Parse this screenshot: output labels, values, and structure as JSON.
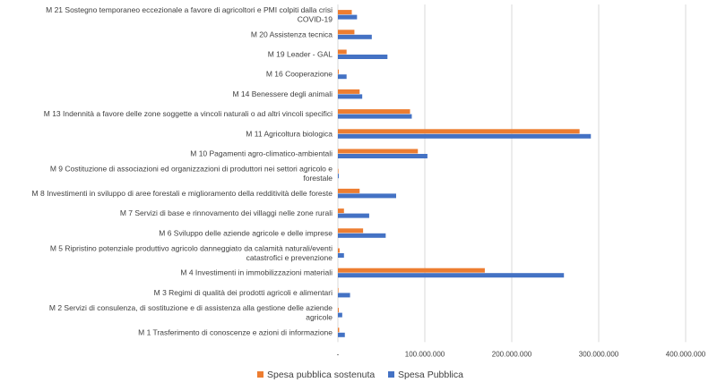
{
  "chart_data": {
    "type": "bar",
    "orientation": "horizontal",
    "title": "",
    "xlabel": "",
    "ylabel": "",
    "xlim": [
      0,
      400000000
    ],
    "x_ticks": [
      0,
      100000000,
      200000000,
      300000000,
      400000000
    ],
    "x_tick_labels": [
      "-",
      "100.000.000",
      "200.000.000",
      "300.000.000",
      "400.000.000"
    ],
    "grid": true,
    "legend_position": "bottom",
    "categories": [
      [
        "M 21 Sostegno temporaneo eccezionale a favore di agricoltori e PMI colpiti dalla crisi",
        "COVID-19"
      ],
      [
        "M 20 Assistenza tecnica"
      ],
      [
        "M 19 Leader - GAL"
      ],
      [
        "M 16 Cooperazione"
      ],
      [
        "M 14 Benessere degli animali"
      ],
      [
        "M 13 Indennità a favore delle zone soggette a vincoli naturali o ad altri vincoli specifici"
      ],
      [
        "M 11 Agricoltura biologica"
      ],
      [
        "M 10 Pagamenti agro-climatico-ambientali"
      ],
      [
        "M 9 Costituzione di associazioni ed organizzazioni di produttori nei settori agricolo e",
        "forestale"
      ],
      [
        "M 8 Investimenti in sviluppo di aree forestali e miglioramento della redditività delle foreste"
      ],
      [
        "M 7 Servizi di base e rinnovamento dei villaggi nelle zone rurali"
      ],
      [
        "M 6 Sviluppo delle aziende agricole e delle imprese"
      ],
      [
        "M 5 Ripristino potenziale produttivo agricolo danneggiato da calamità naturali/eventi",
        "catastrofici e prevenzione"
      ],
      [
        "M 4 Investimenti in immobilizzazioni materiali"
      ],
      [
        "M 3 Regimi di qualità dei prodotti agricoli e alimentari"
      ],
      [
        "M 2 Servizi di consulenza, di sostituzione e di assistenza alla gestione delle aziende",
        "agricole"
      ],
      [
        "M 1 Trasferimento di conoscenze e azioni di informazione"
      ]
    ],
    "series": [
      {
        "name": "Spesa pubblica sostenuta",
        "color": "#ed7d31",
        "values": [
          16000000,
          19000000,
          10000000,
          1000000,
          25000000,
          83000000,
          278000000,
          92000000,
          300000,
          25000000,
          7000000,
          29000000,
          2000000,
          169000000,
          500000,
          1000000,
          1500000
        ]
      },
      {
        "name": "Spesa Pubblica",
        "color": "#4472c4",
        "values": [
          22000000,
          39000000,
          57000000,
          10000000,
          28000000,
          85000000,
          291000000,
          103000000,
          1000000,
          67000000,
          36000000,
          55000000,
          7000000,
          260000000,
          14000000,
          5000000,
          8000000
        ]
      }
    ]
  }
}
